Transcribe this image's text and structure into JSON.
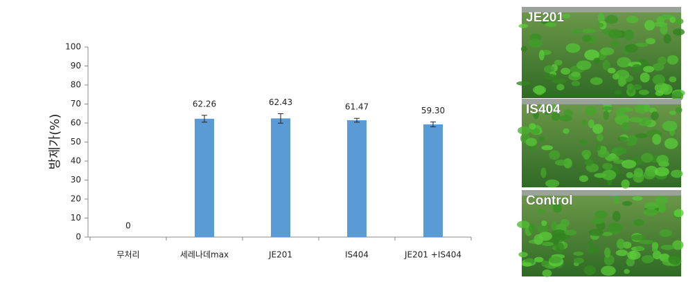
{
  "chart_data": {
    "type": "bar",
    "y_label": "방제가(%)",
    "categories": [
      "무처리",
      "세레나데max",
      "JE201",
      "IS404",
      "JE201 +IS404"
    ],
    "values": [
      0,
      62.26,
      62.43,
      61.47,
      59.3
    ],
    "value_labels": [
      "0",
      "62.26",
      "62.43",
      "61.47",
      "59.30"
    ],
    "errors": [
      null,
      1.8,
      2.5,
      1.0,
      1.3
    ],
    "color": "#5b9bd5",
    "ylim": [
      0,
      100
    ],
    "yticks": [
      0,
      10,
      20,
      30,
      40,
      50,
      60,
      70,
      80,
      90,
      100
    ]
  },
  "photos": [
    "JE201",
    "IS404",
    "Control"
  ]
}
